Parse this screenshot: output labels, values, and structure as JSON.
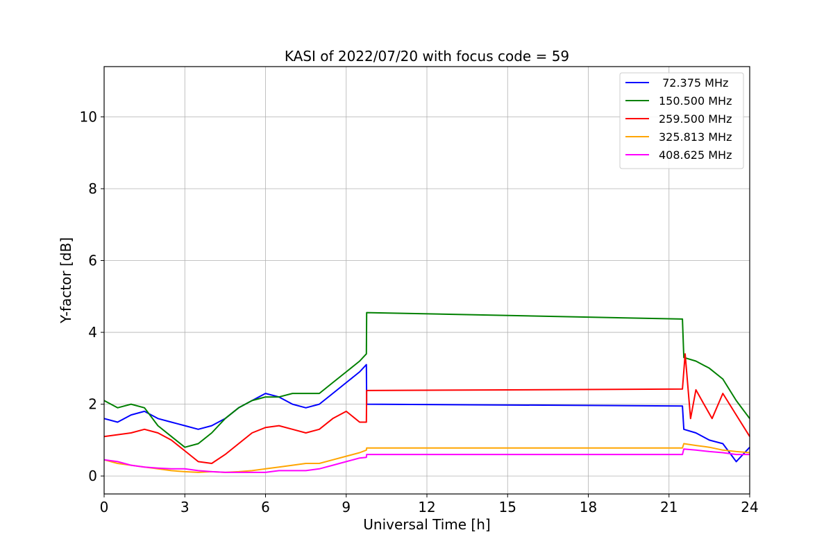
{
  "chart_data": {
    "type": "line",
    "title": "KASI of 2022/07/20 with focus code = 59",
    "xlabel": "Universal Time [h]",
    "ylabel": "Y-factor [dB]",
    "xlim": [
      0,
      24
    ],
    "ylim": [
      -0.5,
      11.4
    ],
    "xticks": [
      "0",
      "3",
      "6",
      "9",
      "12",
      "15",
      "18",
      "21",
      "24"
    ],
    "yticks": [
      "0",
      "2",
      "4",
      "6",
      "8",
      "10"
    ],
    "grid": true,
    "legend_position": "top-right",
    "series": [
      {
        "name": " 72.375 MHz",
        "color": "#0000ff",
        "points": [
          [
            0,
            1.6
          ],
          [
            0.5,
            1.5
          ],
          [
            1,
            1.7
          ],
          [
            1.5,
            1.8
          ],
          [
            2,
            1.6
          ],
          [
            2.5,
            1.5
          ],
          [
            3,
            1.4
          ],
          [
            3.5,
            1.3
          ],
          [
            4,
            1.4
          ],
          [
            4.5,
            1.6
          ],
          [
            5,
            1.9
          ],
          [
            5.5,
            2.1
          ],
          [
            6,
            2.3
          ],
          [
            6.5,
            2.2
          ],
          [
            7,
            2.0
          ],
          [
            7.5,
            1.9
          ],
          [
            8,
            2.0
          ],
          [
            8.5,
            2.3
          ],
          [
            9,
            2.6
          ],
          [
            9.5,
            2.9
          ],
          [
            9.75,
            3.1
          ],
          [
            9.76,
            2.0
          ],
          [
            21.5,
            1.95
          ],
          [
            21.55,
            1.3
          ],
          [
            22,
            1.2
          ],
          [
            22.5,
            1.0
          ],
          [
            23,
            0.9
          ],
          [
            23.5,
            0.4
          ],
          [
            24,
            0.8
          ]
        ]
      },
      {
        "name": "150.500 MHz",
        "color": "#008000",
        "points": [
          [
            0,
            2.1
          ],
          [
            0.5,
            1.9
          ],
          [
            1,
            2.0
          ],
          [
            1.5,
            1.9
          ],
          [
            2,
            1.4
          ],
          [
            2.5,
            1.1
          ],
          [
            3,
            0.8
          ],
          [
            3.5,
            0.9
          ],
          [
            4,
            1.2
          ],
          [
            4.5,
            1.6
          ],
          [
            5,
            1.9
          ],
          [
            5.5,
            2.1
          ],
          [
            6,
            2.2
          ],
          [
            6.5,
            2.2
          ],
          [
            7,
            2.3
          ],
          [
            7.5,
            2.3
          ],
          [
            8,
            2.3
          ],
          [
            8.5,
            2.6
          ],
          [
            9,
            2.9
          ],
          [
            9.5,
            3.2
          ],
          [
            9.75,
            3.4
          ],
          [
            9.76,
            4.55
          ],
          [
            21.5,
            4.37
          ],
          [
            21.55,
            3.3
          ],
          [
            22,
            3.2
          ],
          [
            22.5,
            3.0
          ],
          [
            23,
            2.7
          ],
          [
            23.5,
            2.1
          ],
          [
            24,
            1.6
          ]
        ]
      },
      {
        "name": "259.500 MHz",
        "color": "#ff0000",
        "points": [
          [
            0,
            1.1
          ],
          [
            0.5,
            1.15
          ],
          [
            1,
            1.2
          ],
          [
            1.5,
            1.3
          ],
          [
            2,
            1.2
          ],
          [
            2.5,
            1.0
          ],
          [
            3,
            0.7
          ],
          [
            3.5,
            0.4
          ],
          [
            4,
            0.35
          ],
          [
            4.5,
            0.6
          ],
          [
            5,
            0.9
          ],
          [
            5.5,
            1.2
          ],
          [
            6,
            1.35
          ],
          [
            6.5,
            1.4
          ],
          [
            7,
            1.3
          ],
          [
            7.5,
            1.2
          ],
          [
            8,
            1.3
          ],
          [
            8.5,
            1.6
          ],
          [
            9,
            1.8
          ],
          [
            9.5,
            1.5
          ],
          [
            9.75,
            1.5
          ],
          [
            9.76,
            2.38
          ],
          [
            21.5,
            2.42
          ],
          [
            21.6,
            3.4
          ],
          [
            21.8,
            1.6
          ],
          [
            22,
            2.4
          ],
          [
            22.3,
            2.0
          ],
          [
            22.6,
            1.6
          ],
          [
            23,
            2.3
          ],
          [
            23.5,
            1.7
          ],
          [
            24,
            1.1
          ]
        ]
      },
      {
        "name": "325.813 MHz",
        "color": "#ffa500",
        "points": [
          [
            0,
            0.45
          ],
          [
            0.5,
            0.35
          ],
          [
            1,
            0.3
          ],
          [
            1.5,
            0.25
          ],
          [
            2,
            0.2
          ],
          [
            2.5,
            0.15
          ],
          [
            3,
            0.12
          ],
          [
            3.5,
            0.1
          ],
          [
            4,
            0.12
          ],
          [
            4.5,
            0.1
          ],
          [
            5,
            0.12
          ],
          [
            5.5,
            0.15
          ],
          [
            6,
            0.2
          ],
          [
            6.5,
            0.25
          ],
          [
            7,
            0.3
          ],
          [
            7.5,
            0.35
          ],
          [
            8,
            0.35
          ],
          [
            8.5,
            0.45
          ],
          [
            9,
            0.55
          ],
          [
            9.5,
            0.65
          ],
          [
            9.75,
            0.72
          ],
          [
            9.76,
            0.78
          ],
          [
            21.5,
            0.78
          ],
          [
            21.55,
            0.9
          ],
          [
            22,
            0.85
          ],
          [
            22.5,
            0.8
          ],
          [
            23,
            0.72
          ],
          [
            23.5,
            0.68
          ],
          [
            24,
            0.65
          ]
        ]
      },
      {
        "name": "408.625 MHz",
        "color": "#ff00ff",
        "points": [
          [
            0,
            0.45
          ],
          [
            0.5,
            0.4
          ],
          [
            1,
            0.3
          ],
          [
            1.5,
            0.25
          ],
          [
            2,
            0.22
          ],
          [
            2.5,
            0.2
          ],
          [
            3,
            0.2
          ],
          [
            3.5,
            0.15
          ],
          [
            4,
            0.12
          ],
          [
            4.5,
            0.1
          ],
          [
            5,
            0.1
          ],
          [
            5.5,
            0.1
          ],
          [
            6,
            0.1
          ],
          [
            6.5,
            0.15
          ],
          [
            7,
            0.15
          ],
          [
            7.5,
            0.15
          ],
          [
            8,
            0.2
          ],
          [
            8.5,
            0.3
          ],
          [
            9,
            0.4
          ],
          [
            9.5,
            0.5
          ],
          [
            9.75,
            0.52
          ],
          [
            9.76,
            0.6
          ],
          [
            21.5,
            0.6
          ],
          [
            21.55,
            0.75
          ],
          [
            22,
            0.72
          ],
          [
            22.5,
            0.68
          ],
          [
            23,
            0.65
          ],
          [
            23.5,
            0.6
          ],
          [
            24,
            0.6
          ]
        ]
      }
    ]
  }
}
